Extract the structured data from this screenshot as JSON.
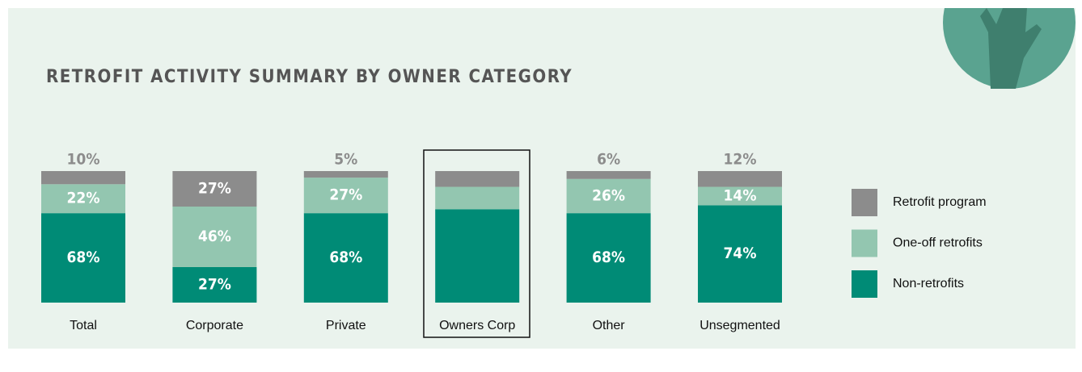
{
  "chart_data": {
    "type": "stacked_bar",
    "title": "RETROFIT ACTIVITY SUMMARY BY OWNER CATEGORY",
    "categories": [
      "Total",
      "Corporate",
      "Private",
      "Owners Corp",
      "Other",
      "Unsegmented"
    ],
    "ylim": [
      0,
      100
    ],
    "series": [
      {
        "name": "Retrofit program",
        "color": "#8c8c8c",
        "values": [
          10,
          27,
          5,
          12,
          6,
          12
        ],
        "value_labels": [
          "10%",
          "27%",
          "5%",
          null,
          "6%",
          "12%"
        ]
      },
      {
        "name": "One-off retrofits",
        "color": "#93c6b0",
        "values": [
          22,
          46,
          27,
          17,
          26,
          14
        ],
        "value_labels": [
          "22%",
          "46%",
          "27%",
          null,
          "26%",
          "14%"
        ]
      },
      {
        "name": "Non-retrofits",
        "color": "#008b76",
        "values": [
          68,
          27,
          68,
          71,
          68,
          74
        ],
        "value_labels": [
          "68%",
          "27%",
          "68%",
          null,
          "68%",
          "74%"
        ]
      }
    ]
  }
}
